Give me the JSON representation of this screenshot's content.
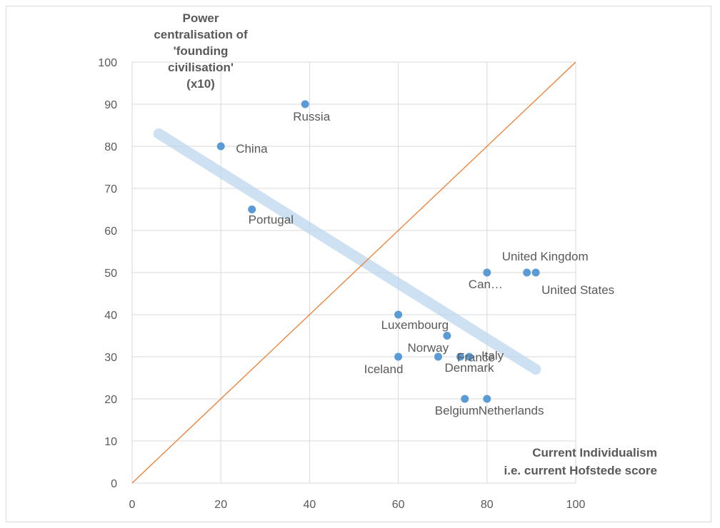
{
  "chart_data": {
    "type": "scatter",
    "title": "",
    "ylabel_lines": [
      "Power",
      "centralisation of",
      "'founding",
      "civilisation'",
      "(x10)"
    ],
    "xlabel_lines": [
      "Current Individualism",
      "i.e. current Hofstede score"
    ],
    "xlim": [
      0,
      100
    ],
    "ylim": [
      0,
      100
    ],
    "x_ticks": [
      "0",
      "20",
      "40",
      "60",
      "80",
      "100"
    ],
    "y_ticks": [
      "0",
      "10",
      "20",
      "30",
      "40",
      "50",
      "60",
      "70",
      "80",
      "90",
      "100"
    ],
    "grid": true,
    "legend": "none",
    "points": [
      {
        "label": "Russia",
        "x": 39,
        "y": 90
      },
      {
        "label": "China",
        "x": 20,
        "y": 80
      },
      {
        "label": "Portugal",
        "x": 27,
        "y": 65
      },
      {
        "label": "Can…",
        "x": 80,
        "y": 50
      },
      {
        "label": "United Kingdom",
        "x": 89,
        "y": 50
      },
      {
        "label": "United States",
        "x": 91,
        "y": 50
      },
      {
        "label": "Luxembourg",
        "x": 60,
        "y": 40
      },
      {
        "label": "France",
        "x": 71,
        "y": 35
      },
      {
        "label": "Iceland",
        "x": 60,
        "y": 30
      },
      {
        "label": "Norway",
        "x": 69,
        "y": 30
      },
      {
        "label": "Denmark",
        "x": 74,
        "y": 30
      },
      {
        "label": "Italy",
        "x": 76,
        "y": 30
      },
      {
        "label": "Belgium",
        "x": 75,
        "y": 20
      },
      {
        "label": "Netherlands",
        "x": 80,
        "y": 20
      }
    ],
    "reference_line": {
      "from": [
        0,
        0
      ],
      "to": [
        100,
        100
      ]
    },
    "trend_band": {
      "from": [
        6,
        83
      ],
      "to": [
        91,
        27
      ]
    },
    "colors": {
      "point": "#5b9bd5",
      "reference_line": "#ed7d31",
      "trend_band": "#bdd7ee",
      "grid": "#d9d9d9",
      "text": "#595959"
    }
  }
}
